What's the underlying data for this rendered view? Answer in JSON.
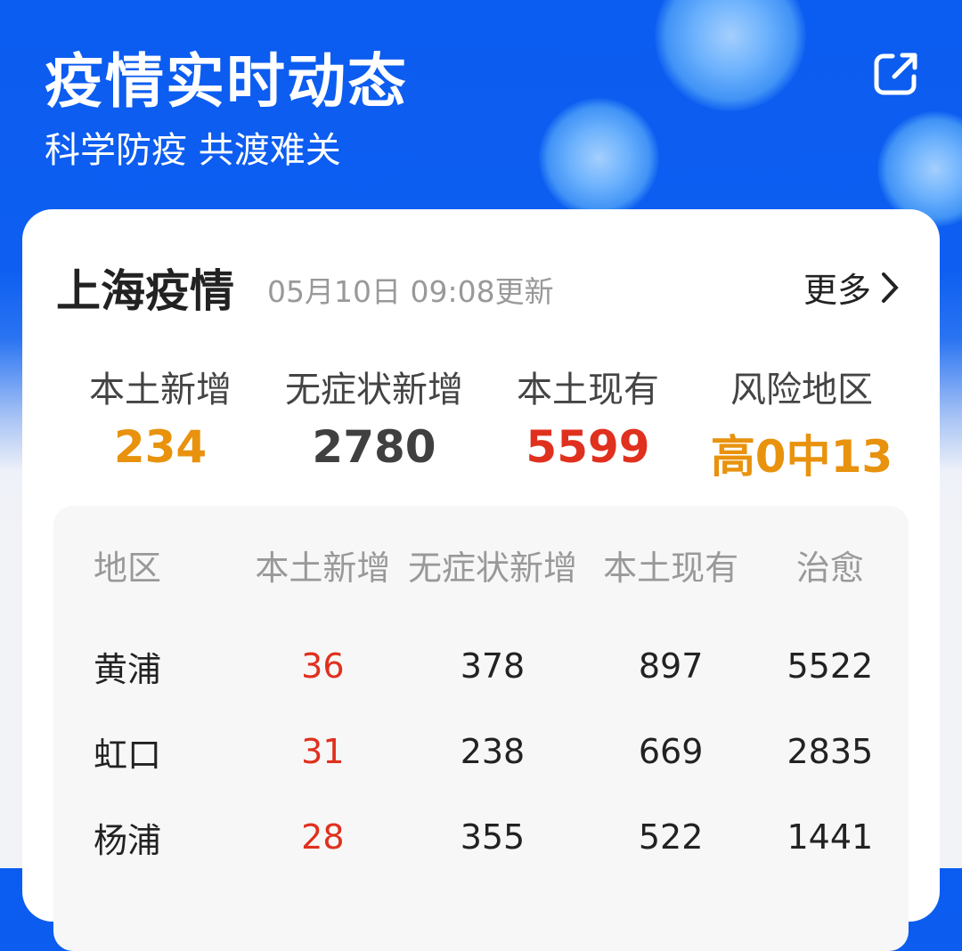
{
  "header": {
    "title": "疫情实时动态",
    "subtitle": "科学防疫 共渡难关",
    "share_icon": "share-external-icon"
  },
  "card": {
    "title": "上海疫情",
    "updated": "05月10日 09:08更新",
    "more_label": "更多",
    "stats": [
      {
        "label": "本土新增",
        "value": "234",
        "color": "#e8920e"
      },
      {
        "label": "无症状新增",
        "value": "2780",
        "color": "#404040"
      },
      {
        "label": "本土现有",
        "value": "5599",
        "color": "#e0301e"
      },
      {
        "label": "风险地区",
        "value": "高0中13",
        "color": "#e8920e"
      }
    ]
  },
  "table": {
    "headers": [
      "地区",
      "本土新增",
      "无症状新增",
      "本土现有",
      "治愈"
    ],
    "rows": [
      [
        "黄浦",
        "36",
        "378",
        "897",
        "5522"
      ],
      [
        "虹口",
        "31",
        "238",
        "669",
        "2835"
      ],
      [
        "杨浦",
        "28",
        "355",
        "522",
        "1441"
      ]
    ]
  }
}
